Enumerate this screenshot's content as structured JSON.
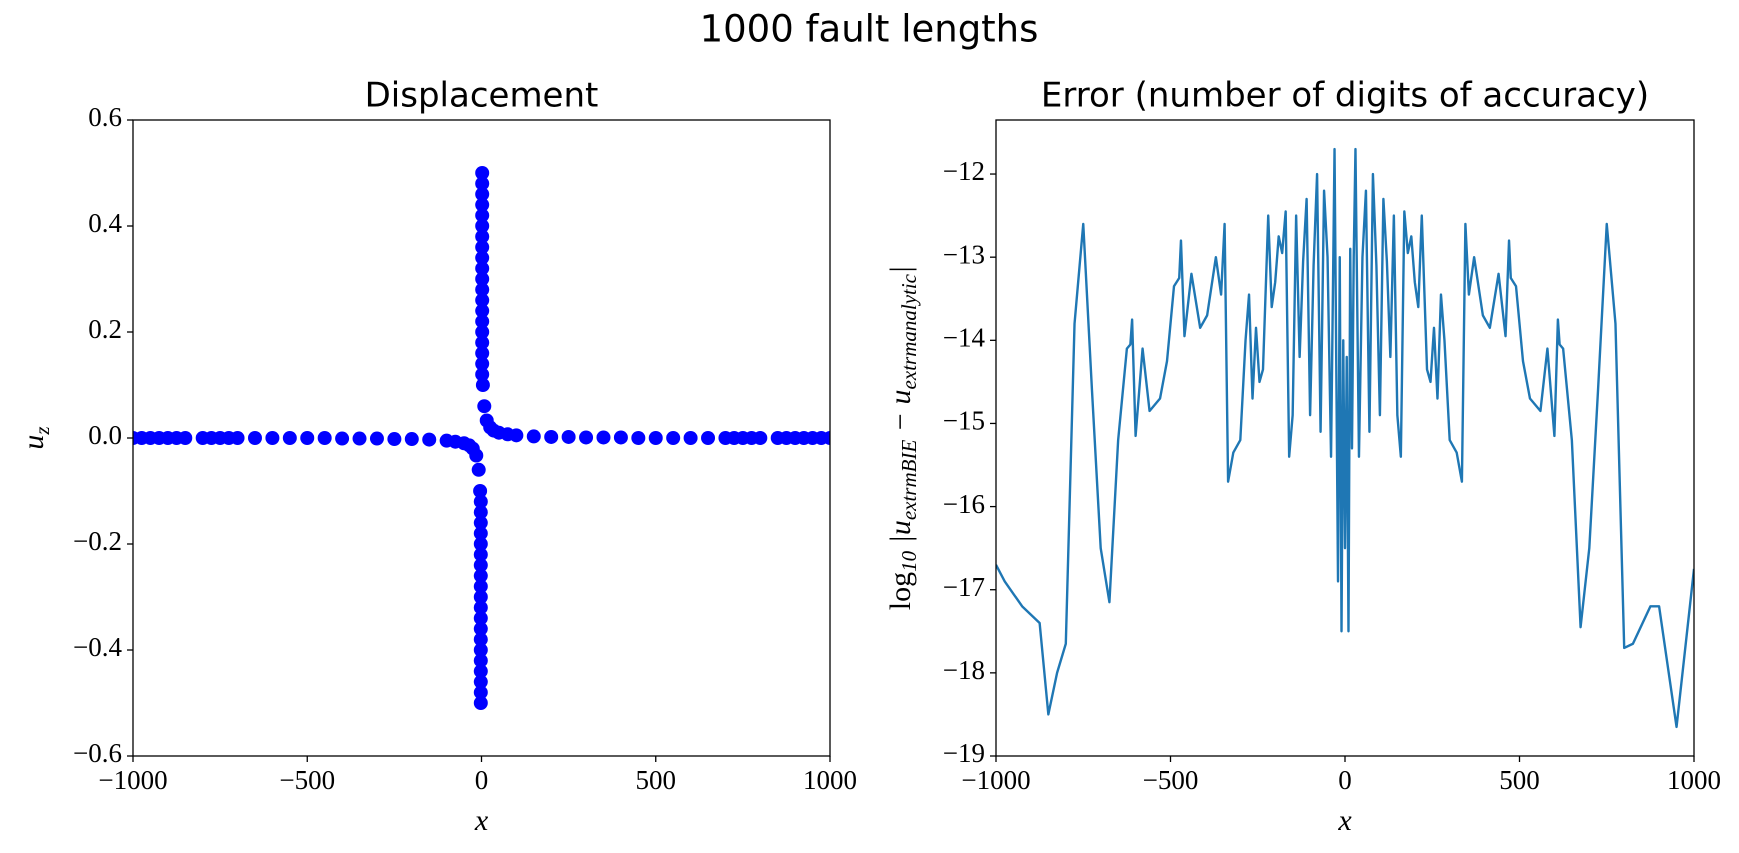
{
  "title": "1000 fault lengths",
  "chart_data": [
    {
      "type": "scatter",
      "title": "Displacement",
      "xlabel": "x",
      "ylabel": [
        "u",
        "z"
      ],
      "color": "#0000ff",
      "xlim": [
        -1000,
        1000
      ],
      "ylim": [
        -0.6,
        0.6
      ],
      "xticks": [
        {
          "value": -1000,
          "label": "−1000"
        },
        {
          "value": -500,
          "label": "−500"
        },
        0,
        500,
        1000
      ],
      "yticks": [
        {
          "value": -0.6,
          "label": "−0.6"
        },
        {
          "value": -0.4,
          "label": "−0.4"
        },
        {
          "value": -0.2,
          "label": "−0.2"
        },
        {
          "value": 0,
          "label": "0.0"
        },
        {
          "value": 0.2,
          "label": "0.2"
        },
        {
          "value": 0.4,
          "label": "0.4"
        },
        {
          "value": 0.6,
          "label": "0.6"
        }
      ],
      "x": [
        -1000,
        -975,
        -950,
        -925,
        -900,
        -875,
        -850,
        -800,
        -775,
        -750,
        -725,
        -700,
        -650,
        -600,
        -550,
        -500,
        -450,
        -400,
        -350,
        -300,
        -250,
        -200,
        -150,
        -100,
        -75,
        -50,
        -35,
        -25,
        -15,
        -8,
        -4,
        -2,
        -2,
        -2,
        -2,
        -2,
        -2,
        -2,
        -2,
        -2,
        -2,
        -2,
        -2,
        -2,
        -2,
        -2,
        -2,
        -2,
        -2,
        -2,
        -2,
        2,
        2,
        2,
        2,
        2,
        2,
        2,
        2,
        2,
        2,
        2,
        2,
        2,
        2,
        2,
        2,
        2,
        2,
        2,
        2,
        4,
        8,
        15,
        25,
        35,
        50,
        75,
        100,
        150,
        200,
        250,
        300,
        350,
        400,
        450,
        500,
        550,
        600,
        650,
        700,
        725,
        750,
        775,
        800,
        850,
        875,
        900,
        925,
        950,
        975,
        1000
      ],
      "values": [
        0,
        0,
        0,
        0,
        0,
        0,
        0,
        0,
        0,
        0,
        0,
        0,
        0,
        0,
        0,
        0,
        0,
        -0.001,
        -0.001,
        -0.001,
        -0.002,
        -0.002,
        -0.003,
        -0.005,
        -0.007,
        -0.01,
        -0.014,
        -0.02,
        -0.033,
        -0.06,
        -0.1,
        -0.12,
        -0.14,
        -0.16,
        -0.18,
        -0.2,
        -0.22,
        -0.24,
        -0.26,
        -0.28,
        -0.3,
        -0.32,
        -0.34,
        -0.36,
        -0.38,
        -0.4,
        -0.42,
        -0.44,
        -0.46,
        -0.48,
        -0.5,
        0.5,
        0.48,
        0.46,
        0.44,
        0.42,
        0.4,
        0.38,
        0.36,
        0.34,
        0.32,
        0.3,
        0.28,
        0.26,
        0.24,
        0.22,
        0.2,
        0.18,
        0.16,
        0.14,
        0.12,
        0.1,
        0.06,
        0.033,
        0.02,
        0.014,
        0.01,
        0.007,
        0.005,
        0.003,
        0.002,
        0.002,
        0.001,
        0.001,
        0.001,
        0,
        0,
        0,
        0,
        0,
        0,
        0,
        0,
        0,
        0,
        0,
        0,
        0,
        0,
        0,
        0,
        0
      ]
    },
    {
      "type": "line",
      "title": "Error (number of digits of accuracy)",
      "xlabel": "x",
      "ylabel": [
        "log",
        "10",
        " |u",
        "extrmBIE",
        " − u",
        "extrmanalytic",
        "|"
      ],
      "color": "#1f77b4",
      "xlim": [
        -1000,
        1000
      ],
      "ylim": [
        -19,
        -11.35
      ],
      "xticks": [
        {
          "value": -1000,
          "label": "−1000"
        },
        {
          "value": -500,
          "label": "−500"
        },
        0,
        500,
        1000
      ],
      "yticks": [
        {
          "value": -19,
          "label": "−19"
        },
        {
          "value": -18,
          "label": "−18"
        },
        {
          "value": -17,
          "label": "−17"
        },
        {
          "value": -16,
          "label": "−16"
        },
        {
          "value": -15,
          "label": "−15"
        },
        {
          "value": -14,
          "label": "−14"
        },
        {
          "value": -13,
          "label": "−13"
        },
        {
          "value": -12,
          "label": "−12"
        }
      ],
      "x": [
        -1000,
        -975,
        -950,
        -925,
        -875,
        -850,
        -825,
        -800,
        -775,
        -750,
        -725,
        -700,
        -675,
        -650,
        -625,
        -615,
        -610,
        -600,
        -580,
        -560,
        -530,
        -510,
        -490,
        -475,
        -470,
        -460,
        -440,
        -415,
        -395,
        -370,
        -355,
        -345,
        -335,
        -320,
        -300,
        -285,
        -275,
        -265,
        -255,
        -245,
        -235,
        -220,
        -210,
        -200,
        -190,
        -180,
        -170,
        -160,
        -150,
        -140,
        -130,
        -120,
        -110,
        -100,
        -90,
        -80,
        -70,
        -60,
        -50,
        -40,
        -30,
        -20,
        -15,
        -10,
        -5,
        0,
        5,
        10,
        15,
        20,
        25,
        30,
        40,
        50,
        60,
        70,
        80,
        90,
        100,
        110,
        120,
        130,
        140,
        150,
        160,
        170,
        180,
        190,
        200,
        210,
        220,
        235,
        245,
        255,
        265,
        275,
        285,
        300,
        320,
        335,
        345,
        355,
        370,
        395,
        415,
        440,
        460,
        470,
        475,
        490,
        510,
        530,
        560,
        580,
        600,
        610,
        615,
        625,
        650,
        675,
        700,
        725,
        750,
        775,
        800,
        825,
        875,
        900,
        950,
        1000
      ],
      "values": [
        -16.7,
        -16.9,
        -17.05,
        -17.2,
        -17.4,
        -18.5,
        -18.0,
        -17.65,
        -13.8,
        -12.6,
        -14.6,
        -16.5,
        -17.15,
        -15.2,
        -14.1,
        -14.05,
        -13.75,
        -15.15,
        -14.1,
        -14.85,
        -14.7,
        -14.25,
        -13.35,
        -13.25,
        -12.8,
        -13.95,
        -13.2,
        -13.85,
        -13.7,
        -13.0,
        -13.45,
        -12.6,
        -15.7,
        -15.35,
        -15.2,
        -14.0,
        -13.45,
        -14.7,
        -13.85,
        -14.5,
        -14.35,
        -12.5,
        -13.6,
        -13.3,
        -12.75,
        -12.95,
        -12.45,
        -15.4,
        -14.9,
        -12.5,
        -14.2,
        -13.05,
        -12.3,
        -14.9,
        -13.1,
        -12.0,
        -15.1,
        -12.2,
        -13.0,
        -15.4,
        -11.7,
        -16.9,
        -13.0,
        -17.5,
        -14.0,
        -16.5,
        -14.2,
        -17.5,
        -12.9,
        -15.3,
        -13.0,
        -11.7,
        -15.4,
        -13.0,
        -12.2,
        -15.1,
        -12.0,
        -13.1,
        -14.9,
        -12.3,
        -13.05,
        -14.2,
        -12.5,
        -14.9,
        -15.4,
        -12.45,
        -12.95,
        -12.75,
        -13.3,
        -13.6,
        -12.5,
        -14.35,
        -14.5,
        -13.85,
        -14.7,
        -13.45,
        -14.0,
        -15.2,
        -15.35,
        -15.7,
        -12.6,
        -13.45,
        -13.0,
        -13.7,
        -13.85,
        -13.2,
        -13.95,
        -12.8,
        -13.25,
        -13.35,
        -14.25,
        -14.7,
        -14.85,
        -14.1,
        -15.15,
        -13.75,
        -14.05,
        -14.1,
        -15.2,
        -17.45,
        -16.5,
        -14.6,
        -12.6,
        -13.8,
        -17.7,
        -17.65,
        -17.2,
        -17.2,
        -18.65,
        -16.75
      ]
    }
  ]
}
